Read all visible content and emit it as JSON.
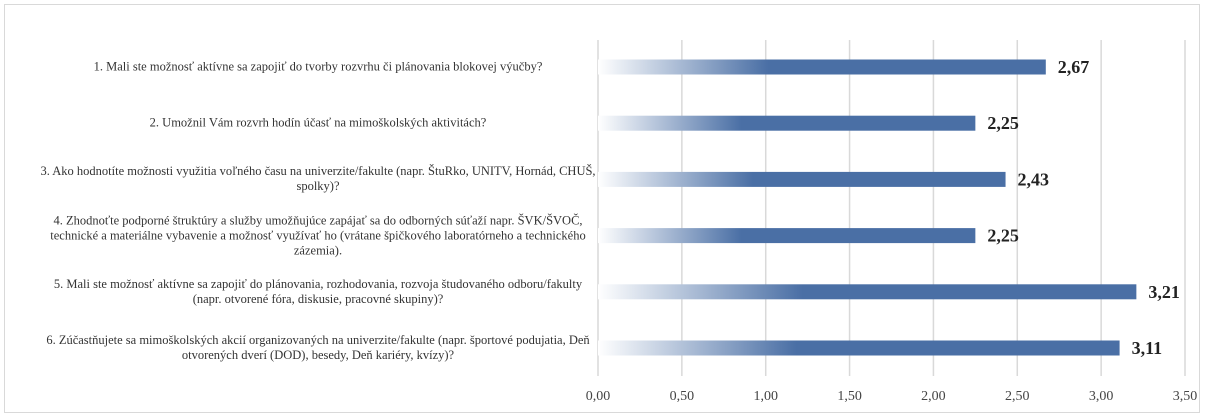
{
  "chart_data": {
    "type": "bar",
    "orientation": "horizontal",
    "categories": [
      "1. Mali ste možnosť aktívne sa zapojiť do tvorby rozvrhu či plánovania blokovej výučby?",
      "2. Umožnil Vám rozvrh hodín účasť na mimoškolských aktivitách?",
      "3. Ako hodnotíte možnosti využitia voľného času na univerzite/fakulte (napr. ŠtuRko, UNITV, Hornád, CHUŠ, spolky)?",
      "4. Zhodnoťte podporné štruktúry a služby umožňujúce zapájať sa do odborných súťaží napr. ŠVK/ŠVOČ, technické a materiálne vybavenie a možnosť využívať ho (vrátane špičkového laboratórneho a technického zázemia).",
      "5. Mali ste možnosť aktívne sa zapojiť do plánovania, rozhodovania, rozvoja študovaného odboru/fakulty (napr. otvorené fóra, diskusie, pracovné skupiny)?",
      "6. Zúčastňujete sa mimoškolských akcií organizovaných na univerzite/fakulte (napr. športové podujatia, Deň otvorených dverí (DOD), besedy, Deň kariéry, kvízy)?"
    ],
    "values": [
      2.67,
      2.25,
      2.43,
      2.25,
      3.21,
      3.11
    ],
    "value_labels": [
      "2,67",
      "2,25",
      "2,43",
      "2,25",
      "3,21",
      "3,11"
    ],
    "color": "#4a6fa5",
    "xlim": [
      0,
      3.5
    ],
    "xticks": [
      {
        "value": 0,
        "label": "0,00"
      },
      {
        "value": 0.5,
        "label": "0,50"
      },
      {
        "value": 1,
        "label": "1,00"
      },
      {
        "value": 1.5,
        "label": "1,50"
      },
      {
        "value": 2,
        "label": "2,00"
      },
      {
        "value": 2.5,
        "label": "2,50"
      },
      {
        "value": 3,
        "label": "3,00"
      },
      {
        "value": 3.5,
        "label": "3,50"
      }
    ],
    "grid": true
  }
}
